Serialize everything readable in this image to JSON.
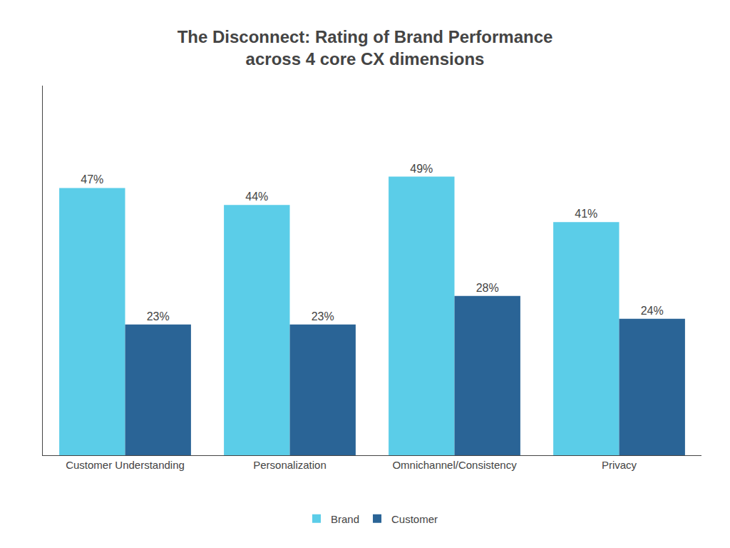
{
  "chart_data": {
    "type": "bar",
    "title": "The Disconnect: Rating of Brand Performance\nacross 4 core CX dimensions",
    "categories": [
      "Customer Understanding",
      "Personalization",
      "Omnichannel/Consistency",
      "Privacy"
    ],
    "series": [
      {
        "name": "Brand",
        "color": "#5BCDE8",
        "values": [
          47,
          44,
          49,
          41
        ],
        "value_labels": [
          "47%",
          "44%",
          "49%",
          "41%"
        ]
      },
      {
        "name": "Customer",
        "color": "#2A6496",
        "values": [
          23,
          23,
          28,
          24
        ],
        "value_labels": [
          "23%",
          "23%",
          "28%",
          "24%"
        ]
      }
    ],
    "ylim": [
      0,
      65
    ],
    "yticks": [],
    "grid": false,
    "legend": "bottom",
    "data_labels": true,
    "tick_labels": "x"
  }
}
